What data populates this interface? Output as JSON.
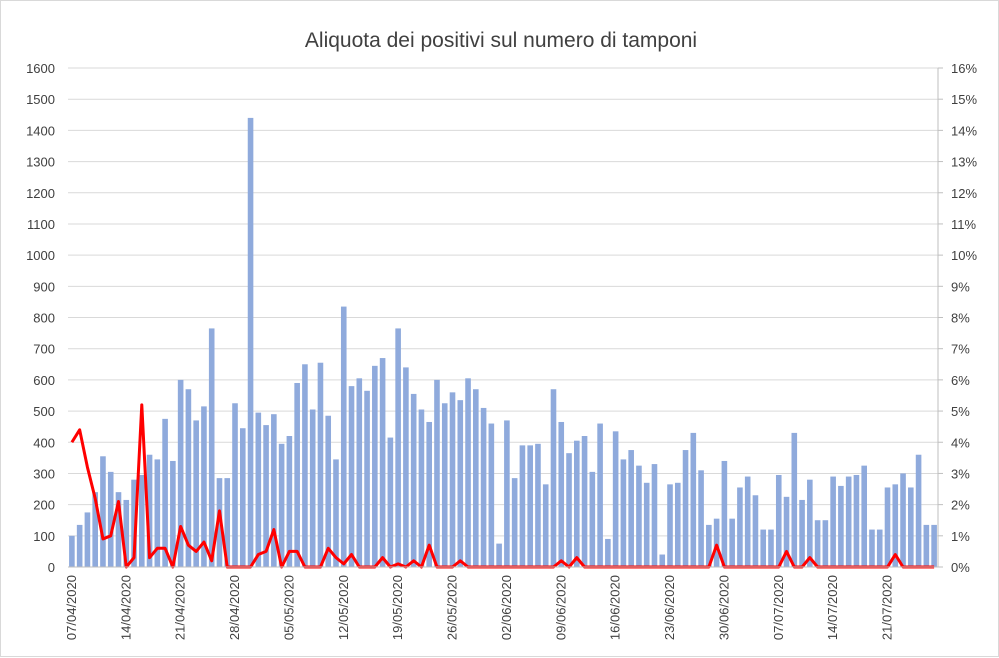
{
  "chart_data": {
    "type": "bar",
    "title": "Aliquota dei positivi sul numero di tamponi",
    "y_left": {
      "min": 0,
      "max": 1600,
      "ticks": [
        "0",
        "100",
        "200",
        "300",
        "400",
        "500",
        "600",
        "700",
        "800",
        "900",
        "1000",
        "1100",
        "1200",
        "1300",
        "1400",
        "1500",
        "1600"
      ]
    },
    "y_right": {
      "min": 0,
      "max": 16,
      "ticks": [
        "0%",
        "1%",
        "2%",
        "3%",
        "4%",
        "5%",
        "6%",
        "7%",
        "8%",
        "9%",
        "10%",
        "11%",
        "12%",
        "13%",
        "14%",
        "15%",
        "16%"
      ]
    },
    "x_tick_labels": [
      {
        "index": 0,
        "label": "07/04/2020"
      },
      {
        "index": 7,
        "label": "14/04/2020"
      },
      {
        "index": 14,
        "label": "21/04/2020"
      },
      {
        "index": 21,
        "label": "28/04/2020"
      },
      {
        "index": 28,
        "label": "05/05/2020"
      },
      {
        "index": 35,
        "label": "12/05/2020"
      },
      {
        "index": 42,
        "label": "19/05/2020"
      },
      {
        "index": 49,
        "label": "26/05/2020"
      },
      {
        "index": 56,
        "label": "02/06/2020"
      },
      {
        "index": 63,
        "label": "09/06/2020"
      },
      {
        "index": 70,
        "label": "16/06/2020"
      },
      {
        "index": 77,
        "label": "23/06/2020"
      },
      {
        "index": 84,
        "label": "30/06/2020"
      },
      {
        "index": 91,
        "label": "07/07/2020"
      },
      {
        "index": 98,
        "label": "14/07/2020"
      },
      {
        "index": 105,
        "label": "21/07/2020"
      }
    ],
    "series": [
      {
        "type": "bar",
        "axis": "left",
        "color": "#8faadc",
        "values": [
          100,
          135,
          175,
          240,
          355,
          305,
          240,
          215,
          280,
          295,
          360,
          345,
          475,
          340,
          600,
          570,
          470,
          515,
          765,
          285,
          285,
          525,
          445,
          1440,
          495,
          455,
          490,
          395,
          420,
          590,
          650,
          505,
          655,
          485,
          345,
          835,
          580,
          605,
          565,
          645,
          670,
          415,
          765,
          640,
          555,
          505,
          465,
          600,
          525,
          560,
          535,
          605,
          570,
          510,
          460,
          75,
          470,
          285,
          390,
          390,
          395,
          265,
          570,
          465,
          365,
          405,
          420,
          305,
          460,
          90,
          435,
          345,
          375,
          325,
          270,
          330,
          40,
          265,
          270,
          375,
          430,
          310,
          135,
          155,
          340,
          155,
          255,
          290,
          230,
          120,
          120,
          295,
          225,
          430,
          215,
          280,
          150,
          150,
          290,
          260,
          290,
          295,
          325,
          120,
          120,
          255,
          265,
          300,
          255,
          360,
          135,
          135
        ]
      },
      {
        "type": "line",
        "axis": "right",
        "color": "#ff0000",
        "values": [
          4.0,
          4.4,
          3.2,
          2.2,
          0.9,
          1.0,
          2.1,
          0,
          0.3,
          5.2,
          0.3,
          0.6,
          0.6,
          0,
          1.3,
          0.7,
          0.5,
          0.8,
          0.2,
          1.8,
          0,
          0,
          0,
          0,
          0.4,
          0.5,
          1.2,
          0,
          0.5,
          0.5,
          0,
          0,
          0,
          0.6,
          0.3,
          0.1,
          0.4,
          0,
          0,
          0,
          0.3,
          0,
          0.1,
          0,
          0.2,
          0,
          0.7,
          0,
          0,
          0,
          0.2,
          0,
          0,
          0,
          0,
          0,
          0,
          0,
          0,
          0,
          0,
          0,
          0,
          0.2,
          0,
          0.3,
          0,
          0,
          0,
          0,
          0,
          0,
          0,
          0,
          0,
          0,
          0,
          0,
          0,
          0,
          0,
          0,
          0,
          0.7,
          0,
          0,
          0,
          0,
          0,
          0,
          0,
          0,
          0.5,
          0,
          0,
          0.3,
          0,
          0,
          0,
          0,
          0,
          0,
          0,
          0,
          0,
          0,
          0.4,
          0,
          0,
          0,
          0,
          0
        ]
      }
    ]
  }
}
